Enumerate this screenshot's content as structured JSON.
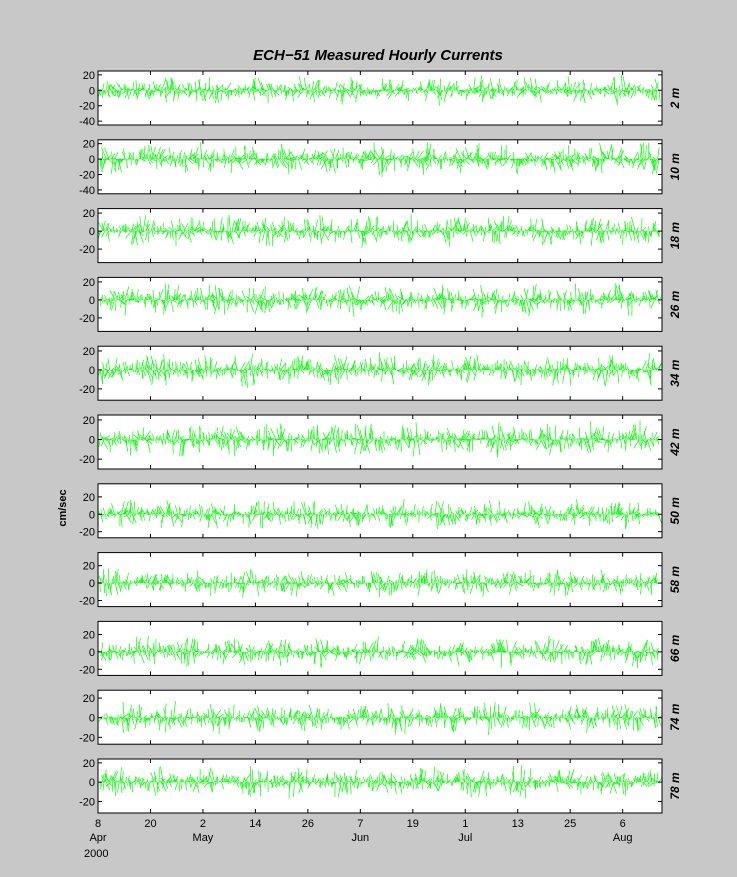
{
  "chart_data": {
    "type": "stick-plot",
    "title": "ECH−51     Measured Hourly Currents",
    "ylabel": "cm/sec",
    "year_label": "2000",
    "stick_color": "#00ff00",
    "background": "#c8c8c8",
    "panel_color": "#ffffff",
    "x_ticks": [
      {
        "day": "8",
        "month": "Apr",
        "date": "2000-04-08"
      },
      {
        "day": "20",
        "month": "",
        "date": "2000-04-20"
      },
      {
        "day": "2",
        "month": "May",
        "date": "2000-05-02"
      },
      {
        "day": "14",
        "month": "",
        "date": "2000-05-14"
      },
      {
        "day": "26",
        "month": "",
        "date": "2000-05-26"
      },
      {
        "day": "7",
        "month": "Jun",
        "date": "2000-06-07"
      },
      {
        "day": "19",
        "month": "",
        "date": "2000-06-19"
      },
      {
        "day": "1",
        "month": "Jul",
        "date": "2000-07-01"
      },
      {
        "day": "13",
        "month": "",
        "date": "2000-07-13"
      },
      {
        "day": "25",
        "month": "",
        "date": "2000-07-25"
      },
      {
        "day": "6",
        "month": "Aug",
        "date": "2000-08-06"
      }
    ],
    "x_range": [
      "2000-04-08",
      "2000-08-15"
    ],
    "panels": [
      {
        "depth": "2 m",
        "ylim": [
          -45,
          25
        ],
        "yticks": [
          20,
          0,
          -20,
          -40
        ],
        "amplitude": 16
      },
      {
        "depth": "10 m",
        "ylim": [
          -45,
          25
        ],
        "yticks": [
          20,
          0,
          -20,
          -40
        ],
        "amplitude": 18
      },
      {
        "depth": "18 m",
        "ylim": [
          -35,
          25
        ],
        "yticks": [
          20,
          0,
          -20
        ],
        "amplitude": 15
      },
      {
        "depth": "26 m",
        "ylim": [
          -35,
          25
        ],
        "yticks": [
          20,
          0,
          -20
        ],
        "amplitude": 16
      },
      {
        "depth": "34 m",
        "ylim": [
          -32,
          25
        ],
        "yticks": [
          20,
          0,
          -20
        ],
        "amplitude": 15
      },
      {
        "depth": "42 m",
        "ylim": [
          -30,
          25
        ],
        "yticks": [
          20,
          0,
          -20
        ],
        "amplitude": 15
      },
      {
        "depth": "50 m",
        "ylim": [
          -27,
          35
        ],
        "yticks": [
          20,
          0,
          -20
        ],
        "amplitude": 15
      },
      {
        "depth": "58 m",
        "ylim": [
          -27,
          35
        ],
        "yticks": [
          20,
          0,
          -20
        ],
        "amplitude": 14
      },
      {
        "depth": "66 m",
        "ylim": [
          -27,
          35
        ],
        "yticks": [
          20,
          0,
          -20
        ],
        "amplitude": 15
      },
      {
        "depth": "74 m",
        "ylim": [
          -27,
          28
        ],
        "yticks": [
          20,
          0,
          -20
        ],
        "amplitude": 14
      },
      {
        "depth": "78 m",
        "ylim": [
          -32,
          24
        ],
        "yticks": [
          20,
          0,
          -20
        ],
        "amplitude": 14
      }
    ]
  }
}
